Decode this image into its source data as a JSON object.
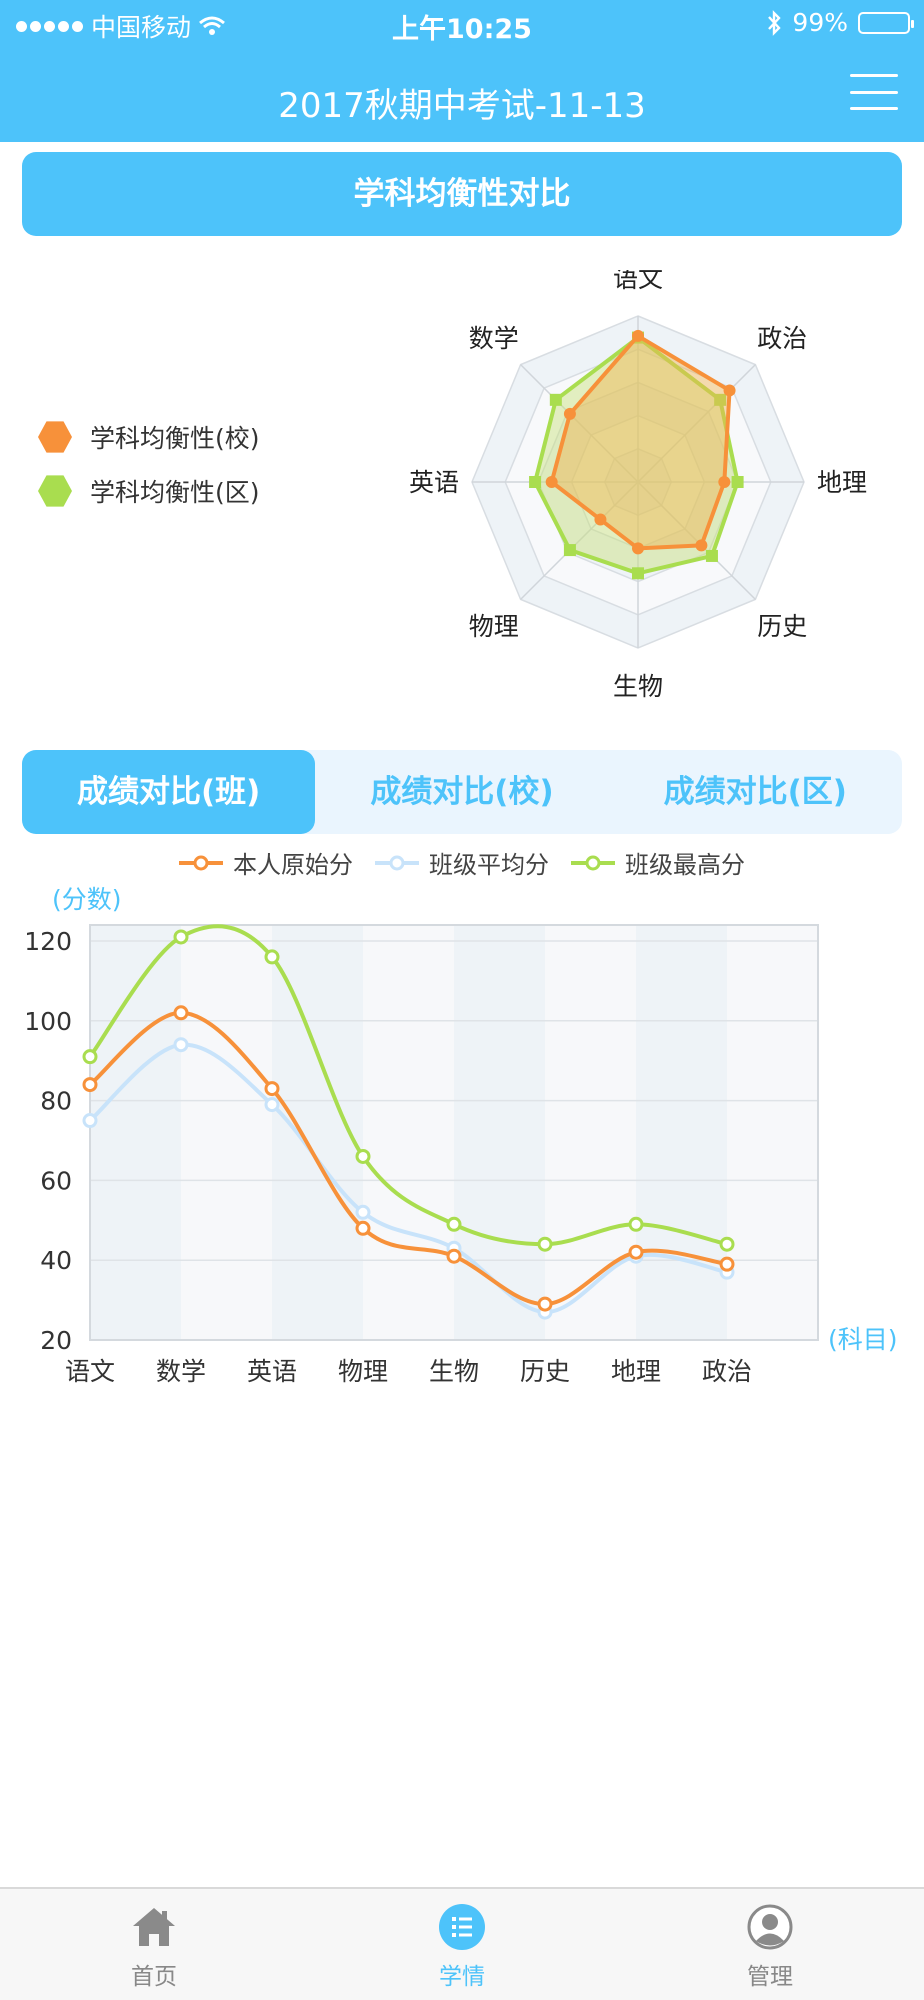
{
  "status_bar": {
    "carrier": "中国移动",
    "time": "上午10:25",
    "battery": "99%",
    "battery_level": 0.99
  },
  "nav": {
    "title": "2017秋期中考试-11-13",
    "menu_icon": "hamburger-menu-icon"
  },
  "radar_section": {
    "header": "学科均衡性对比",
    "legend": [
      {
        "label": "学科均衡性(校)",
        "color": "#f7913a"
      },
      {
        "label": "学科均衡性(区)",
        "color": "#a9dd4f"
      }
    ],
    "axes": [
      "语文",
      "政治",
      "地理",
      "历史",
      "生物",
      "物理",
      "英语",
      "数学"
    ],
    "school_values": [
      0.88,
      0.78,
      0.52,
      0.54,
      0.4,
      0.32,
      0.52,
      0.58
    ],
    "district_values": [
      0.87,
      0.7,
      0.6,
      0.63,
      0.55,
      0.58,
      0.62,
      0.7
    ]
  },
  "tabs": [
    {
      "label": "成绩对比(班)",
      "active": true
    },
    {
      "label": "成绩对比(校)",
      "active": false
    },
    {
      "label": "成绩对比(区)",
      "active": false
    }
  ],
  "chart_data": {
    "type": "line",
    "ylabel": "(分数)",
    "xlabel": "(科目)",
    "categories": [
      "语文",
      "数学",
      "英语",
      "物理",
      "生物",
      "历史",
      "地理",
      "政治"
    ],
    "ylim": [
      20,
      124
    ],
    "yticks": [
      20,
      40,
      60,
      80,
      100,
      120
    ],
    "smooth": true,
    "series": [
      {
        "name": "本人原始分",
        "color": "#f7913a",
        "values": [
          84,
          102,
          83,
          48,
          41,
          29,
          42,
          39
        ]
      },
      {
        "name": "班级平均分",
        "color": "#c8e3fa",
        "values": [
          75,
          94,
          79,
          52,
          43,
          27,
          41,
          37
        ]
      },
      {
        "name": "班级最高分",
        "color": "#a9dd4f",
        "values": [
          91,
          121,
          116,
          66,
          49,
          44,
          49,
          44
        ]
      }
    ]
  },
  "bottom_tabs": [
    {
      "label": "首页",
      "icon": "home-icon",
      "active": false
    },
    {
      "label": "学情",
      "icon": "list-icon",
      "active": true
    },
    {
      "label": "管理",
      "icon": "user-icon",
      "active": false
    }
  ]
}
